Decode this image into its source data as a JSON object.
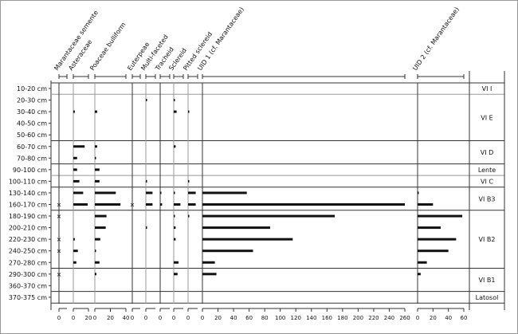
{
  "chart_data": {
    "type": "bar",
    "orientation": "horizontal stratigraphic diagram",
    "depths": [
      "10-20 cm",
      "20-30 cm",
      "30-40 cm",
      "40-50 cm",
      "50-60 cm",
      "60-70 cm",
      "70-80 cm",
      "90-100 cm",
      "100-110 cm",
      "130-140 cm",
      "160-170 cm",
      "180-190 cm",
      "200-210 cm",
      "220-230 cm",
      "240-250 cm",
      "270-280 cm",
      "290-300 cm",
      "360-370 cm",
      "370-375 cm"
    ],
    "series": [
      {
        "name": "Marantaceae semente",
        "type": "presence",
        "ticks": [
          "0"
        ],
        "values": [
          0,
          0,
          0,
          0,
          0,
          0,
          0,
          0,
          0,
          0,
          1,
          1,
          0,
          1,
          1,
          0,
          1,
          0,
          0
        ]
      },
      {
        "name": "Asteraceae",
        "ticks": [
          "0",
          "20"
        ],
        "max": 20,
        "values": [
          0,
          0,
          2,
          0,
          0,
          15,
          5,
          5,
          8,
          13,
          19,
          0,
          0,
          2,
          6,
          4,
          0,
          0,
          0
        ]
      },
      {
        "name": "Poaceae bulliform",
        "ticks": [
          "0",
          "20",
          "40"
        ],
        "max": 40,
        "values": [
          0,
          0,
          3,
          0,
          0,
          3,
          1,
          6,
          6,
          27,
          33,
          15,
          14,
          7,
          1,
          6,
          2,
          0,
          0
        ]
      },
      {
        "name": "Euterpeae",
        "type": "presence",
        "ticks": [
          "0"
        ],
        "values": [
          0,
          0,
          0,
          0,
          0,
          0,
          0,
          0,
          0,
          0,
          1,
          0,
          0,
          0,
          0,
          0,
          0,
          0,
          0
        ]
      },
      {
        "name": "Multi-faceted",
        "ticks": [
          "0"
        ],
        "max": 10,
        "values": [
          0,
          0.5,
          0,
          0,
          0,
          0,
          0,
          0,
          0.5,
          7,
          7,
          0,
          0.5,
          0,
          0,
          0,
          0,
          0,
          0
        ]
      },
      {
        "name": "Tracheid",
        "ticks": [
          "0"
        ],
        "max": 10,
        "values": [
          0,
          0,
          0,
          0,
          0,
          0,
          0,
          0,
          0,
          1,
          2,
          0,
          0,
          0,
          0,
          0,
          0,
          0,
          0
        ]
      },
      {
        "name": "Sclereid",
        "ticks": [
          "0"
        ],
        "max": 10,
        "values": [
          0,
          0.5,
          3,
          0,
          0,
          2,
          0,
          0,
          0,
          1,
          7,
          1,
          2,
          2,
          0,
          5,
          4,
          0,
          0
        ]
      },
      {
        "name": "Pitted sclereid",
        "ticks": [
          "0"
        ],
        "max": 10,
        "values": [
          0,
          0,
          1,
          0,
          0,
          0,
          0,
          0,
          1,
          8,
          8,
          1,
          0,
          0,
          0,
          0,
          0,
          0,
          0
        ]
      },
      {
        "name": "UID 1 (cf. Marantaceae)",
        "ticks": [
          "0",
          "20",
          "40",
          "60",
          "80",
          "100",
          "120",
          "140",
          "160",
          "180",
          "200",
          "220",
          "240",
          "260"
        ],
        "max": 260,
        "values": [
          0,
          0,
          0,
          0,
          0,
          0,
          0,
          0,
          0,
          57,
          260,
          170,
          87,
          116,
          65,
          16,
          18,
          0,
          0
        ]
      },
      {
        "name": "UID 2 (cf. Marantaceae)",
        "ticks": [
          "0",
          "20",
          "40",
          "60"
        ],
        "max": 60,
        "values": [
          0,
          0,
          0,
          0,
          0,
          0,
          0,
          0,
          0,
          1,
          20,
          58,
          30,
          50,
          40,
          12,
          4,
          0,
          0
        ]
      }
    ],
    "zones": [
      {
        "label": "VI I",
        "from": 0,
        "to": 0
      },
      {
        "label": "VI E",
        "from": 1,
        "to": 4
      },
      {
        "label": "VI D",
        "from": 5,
        "to": 6
      },
      {
        "label": "Lente",
        "from": 7,
        "to": 7
      },
      {
        "label": "VI C",
        "from": 8,
        "to": 8
      },
      {
        "label": "VI B3",
        "from": 9,
        "to": 10
      },
      {
        "label": "VI B2",
        "from": 11,
        "to": 15
      },
      {
        "label": "VI B1",
        "from": 16,
        "to": 17
      },
      {
        "label": "Latosol",
        "from": 18,
        "to": 18
      }
    ],
    "presence_marker": "×"
  }
}
